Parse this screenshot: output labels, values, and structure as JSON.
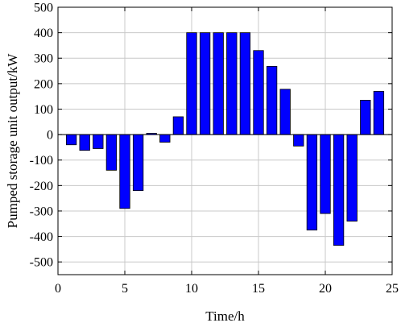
{
  "chart_data": {
    "type": "bar",
    "title": "",
    "xlabel": "Time/h",
    "ylabel": "Pumped storage unit output/kW",
    "x": [
      1,
      2,
      3,
      4,
      5,
      6,
      7,
      8,
      9,
      10,
      11,
      12,
      13,
      14,
      15,
      16,
      17,
      18,
      19,
      20,
      21,
      22,
      23,
      24
    ],
    "values": [
      -40,
      -62,
      -55,
      -140,
      -290,
      -220,
      5,
      -30,
      70,
      400,
      400,
      400,
      400,
      400,
      330,
      268,
      178,
      -45,
      -375,
      -310,
      -435,
      -340,
      135,
      170
    ],
    "xlim": [
      0,
      25
    ],
    "ylim": [
      -550,
      500
    ],
    "xticks": [
      "0",
      "5",
      "10",
      "15",
      "20",
      "25"
    ],
    "yticks": [
      "-500",
      "-400",
      "-300",
      "-200",
      "-100",
      "0",
      "100",
      "200",
      "300",
      "400",
      "500"
    ],
    "grid": true,
    "bar_color": "#0000ff",
    "bar_edge_color": "#000000",
    "grid_color": "#c8c8c8"
  }
}
